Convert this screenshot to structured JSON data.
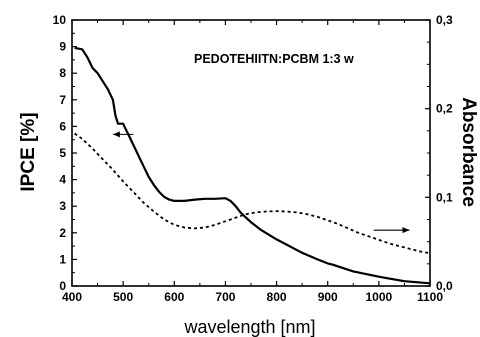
{
  "chart_data": {
    "type": "line",
    "title": "",
    "annotation": "PEDOTEHIITN:PCBM 1:3 w",
    "xlabel": "wavelength [nm]",
    "ylabel": "IPCE [%]",
    "y2label": "Absorbance",
    "xlim": [
      400,
      1100
    ],
    "ylim": [
      0,
      10
    ],
    "y2lim": [
      0,
      0.3
    ],
    "x_ticks": [
      "400",
      "500",
      "600",
      "700",
      "800",
      "900",
      "1000",
      "1100"
    ],
    "y_ticks": [
      "0",
      "1",
      "2",
      "3",
      "4",
      "5",
      "6",
      "7",
      "8",
      "9",
      "10"
    ],
    "y2_ticks": [
      "0,0",
      "0,1",
      "0,2",
      "0,3"
    ],
    "grid": false,
    "series": [
      {
        "style": "solid",
        "axis": "left",
        "x": [
          405,
          420,
          430,
          440,
          450,
          460,
          470,
          480,
          485,
          490,
          500,
          505,
          510,
          520,
          530,
          540,
          550,
          560,
          570,
          580,
          590,
          600,
          620,
          640,
          660,
          680,
          700,
          710,
          720,
          730,
          750,
          770,
          800,
          850,
          880,
          900,
          910,
          950,
          1000,
          1050,
          1100
        ],
        "y": [
          8.95,
          8.9,
          8.6,
          8.2,
          8.0,
          7.7,
          7.4,
          7.0,
          6.4,
          6.1,
          6.1,
          5.9,
          5.7,
          5.3,
          4.9,
          4.5,
          4.1,
          3.8,
          3.55,
          3.35,
          3.25,
          3.2,
          3.2,
          3.25,
          3.28,
          3.28,
          3.3,
          3.2,
          3.0,
          2.75,
          2.4,
          2.1,
          1.75,
          1.25,
          1.0,
          0.85,
          0.8,
          0.55,
          0.35,
          0.18,
          0.1
        ]
      },
      {
        "style": "dotted",
        "axis": "right",
        "x": [
          405,
          420,
          440,
          460,
          480,
          500,
          520,
          540,
          560,
          580,
          600,
          620,
          640,
          660,
          680,
          700,
          720,
          740,
          760,
          780,
          800,
          820,
          840,
          860,
          880,
          900,
          920,
          940,
          960,
          980,
          1000,
          1020,
          1040,
          1060,
          1080,
          1100
        ],
        "y": [
          0.172,
          0.166,
          0.155,
          0.143,
          0.131,
          0.118,
          0.106,
          0.094,
          0.084,
          0.075,
          0.069,
          0.066,
          0.065,
          0.066,
          0.069,
          0.073,
          0.077,
          0.081,
          0.083,
          0.084,
          0.0845,
          0.084,
          0.083,
          0.081,
          0.078,
          0.074,
          0.07,
          0.065,
          0.06,
          0.056,
          0.052,
          0.048,
          0.045,
          0.042,
          0.039,
          0.037
        ]
      }
    ],
    "arrows": [
      {
        "direction": "left",
        "x_from": 520,
        "x_to": 480,
        "y": 5.7,
        "axis": "left"
      },
      {
        "direction": "right",
        "x_from": 990,
        "x_to": 1060,
        "y": 0.063,
        "axis": "right"
      }
    ]
  }
}
